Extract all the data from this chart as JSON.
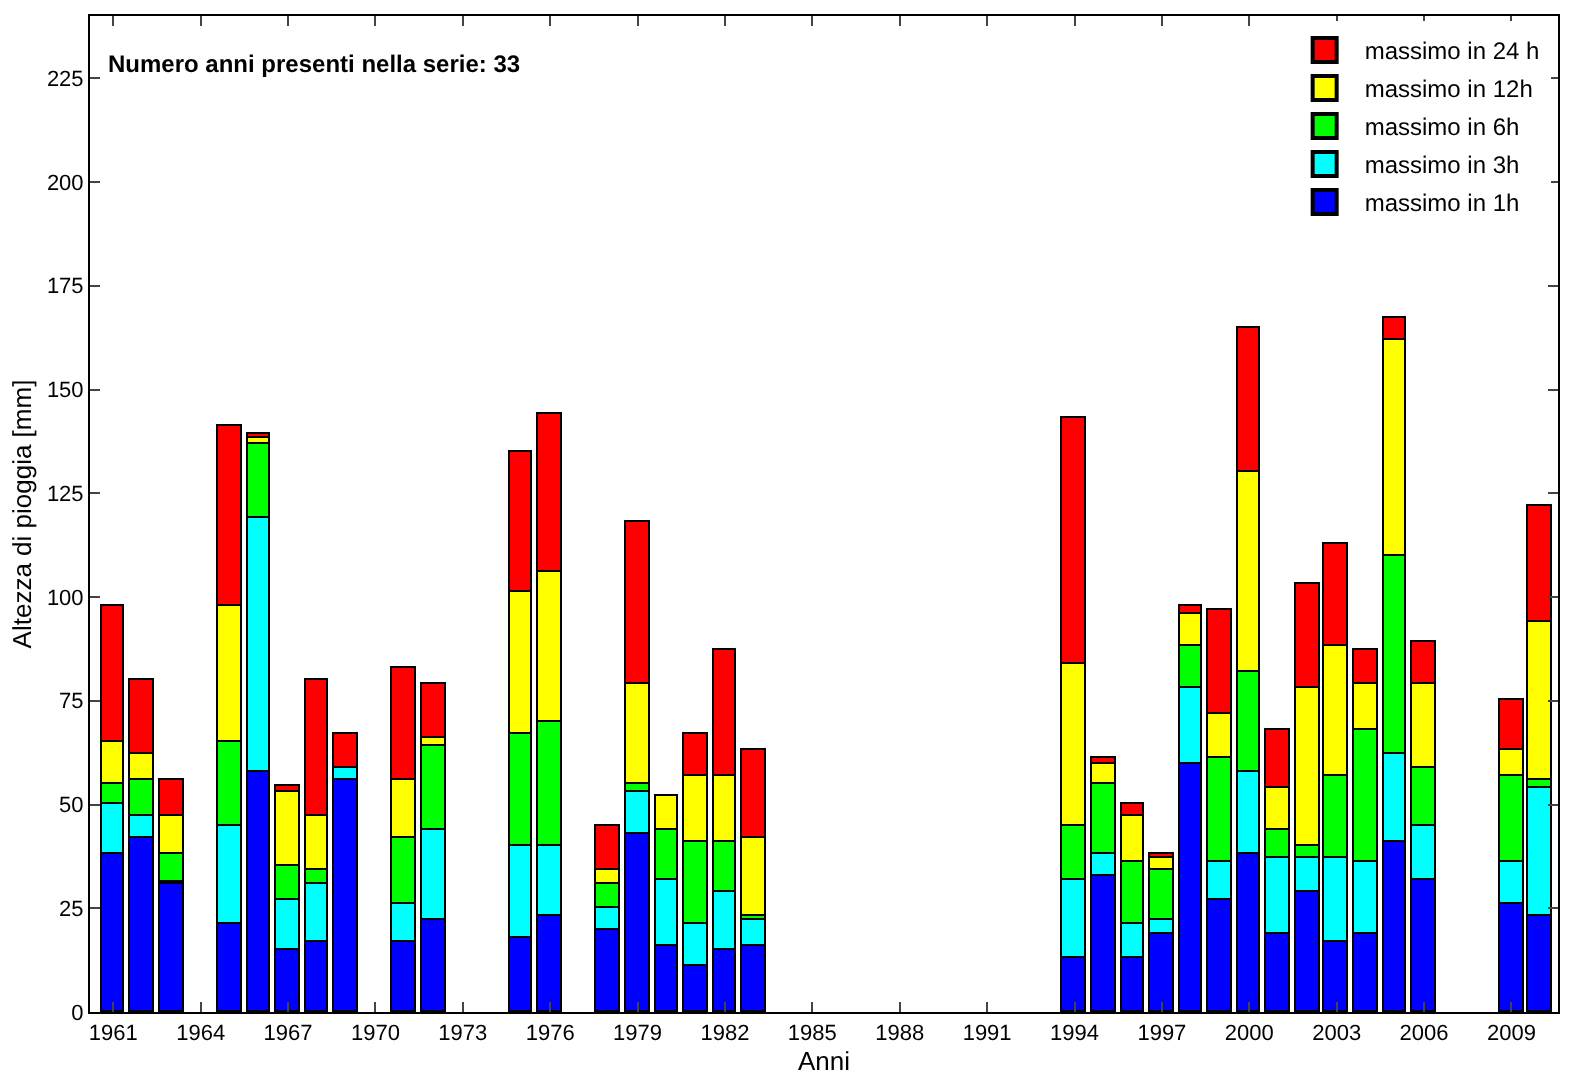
{
  "chart_data": {
    "type": "bar",
    "stacked": true,
    "annotations": [
      "Numero anni presenti nella serie: 33"
    ],
    "xlabel": "Anni",
    "ylabel": "Altezza di pioggia [mm]",
    "x": [
      1961,
      1962,
      1963,
      1965,
      1966,
      1967,
      1968,
      1969,
      1971,
      1972,
      1975,
      1976,
      1978,
      1979,
      1980,
      1981,
      1982,
      1983,
      1994,
      1995,
      1996,
      1997,
      1998,
      1999,
      2000,
      2001,
      2002,
      2003,
      2004,
      2005,
      2006,
      2009,
      2010
    ],
    "xlim": [
      1960.2,
      2010.6
    ],
    "xticks": [
      1961,
      1964,
      1967,
      1970,
      1973,
      1976,
      1979,
      1982,
      1985,
      1988,
      1991,
      1994,
      1997,
      2000,
      2003,
      2006,
      2009
    ],
    "ylim": [
      0,
      240
    ],
    "yticks": [
      0,
      25,
      50,
      75,
      100,
      125,
      150,
      175,
      200,
      225
    ],
    "legend": "top right",
    "series": [
      {
        "name": "massimo in 1h",
        "color": "#0000ff",
        "values": [
          38,
          42,
          31,
          21,
          58,
          15,
          17,
          56,
          17,
          22,
          18,
          23,
          20,
          43,
          16,
          11,
          15,
          16,
          13,
          33,
          13,
          19,
          60,
          27,
          38,
          19,
          29,
          17,
          19,
          41,
          32,
          26,
          23
        ]
      },
      {
        "name": "massimo in 3h",
        "color": "#00ffff",
        "values": [
          12,
          5,
          0.5,
          24,
          61,
          12,
          14,
          3,
          9,
          22,
          22,
          17,
          5,
          10,
          16,
          10,
          14,
          6,
          19,
          5,
          8,
          3,
          18,
          9,
          20,
          18,
          8,
          20,
          17,
          21,
          13,
          10,
          31
        ]
      },
      {
        "name": "massimo in 6h",
        "color": "#00ff00",
        "values": [
          5,
          9,
          6.5,
          20,
          18,
          8,
          3,
          0,
          16,
          20,
          27,
          30,
          6,
          2,
          12,
          20,
          12,
          1,
          13,
          17,
          15,
          12,
          10,
          25,
          24,
          7,
          3,
          20,
          32,
          48,
          14,
          21,
          2
        ]
      },
      {
        "name": "massimo in 12h",
        "color": "#ffff00",
        "values": [
          10,
          6,
          9,
          33,
          1.5,
          18,
          13,
          0,
          14,
          2,
          34,
          36,
          3,
          24,
          8,
          16,
          16,
          19,
          39,
          5,
          11,
          3,
          8,
          11,
          48,
          10,
          38,
          31,
          11,
          52,
          20,
          6,
          38
        ]
      },
      {
        "name": "massimo in 24 h",
        "color": "#ff0000",
        "values": [
          33,
          18,
          9,
          43,
          1,
          1.5,
          33,
          8,
          27,
          13,
          34,
          38,
          11,
          39,
          0,
          10,
          30,
          21,
          59,
          1,
          3,
          1,
          2,
          25,
          35,
          14,
          25,
          25,
          8,
          5,
          10,
          12,
          28
        ]
      }
    ]
  }
}
